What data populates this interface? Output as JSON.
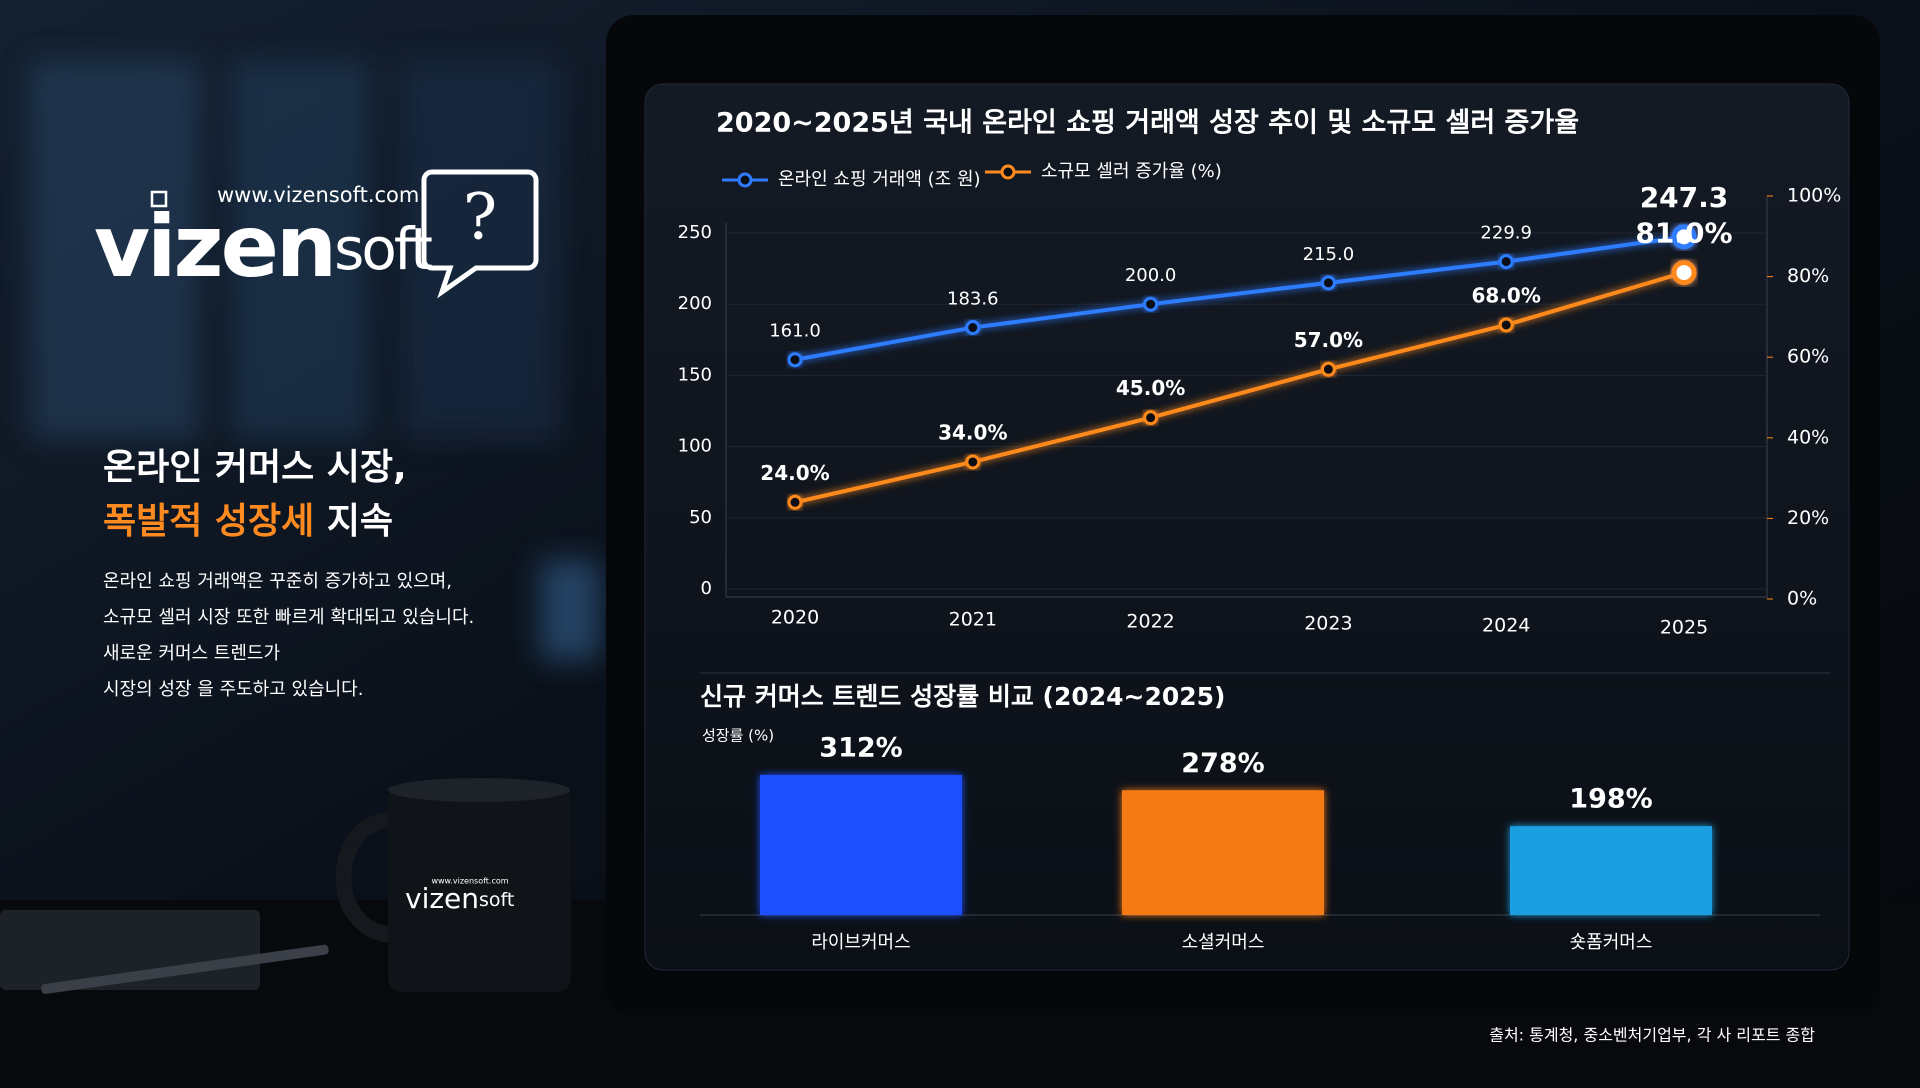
{
  "brand": {
    "url": "www.vizensoft.com",
    "name_main": "vizen",
    "name_sub": "soft",
    "icon": "?"
  },
  "headline": {
    "line1": "온라인 커머스 시장,",
    "highlight": "폭발적 성장세",
    "rest": "지속"
  },
  "body": [
    "온라인 쇼핑 거래액은 꾸준히 증가하고 있으며,",
    "소규모 셀러 시장 또한 빠르게 확대되고 있습니다.",
    "새로운 커머스 트렌드가",
    "시장의 성장 을 주도하고 있습니다."
  ],
  "source": "출처: 통계청, 중소벤처기업부, 각 사 리포트 종합",
  "chart_data": [
    {
      "type": "line",
      "title": "2020~2025년 국내 온라인 쇼핑 거래액 성장 추이 및 소규모 셀러 증가율",
      "categories": [
        "2020",
        "2021",
        "2022",
        "2023",
        "2024",
        "2025"
      ],
      "series": [
        {
          "name": "온라인 쇼핑 거래액 (조 원)",
          "color": "#2f7bff",
          "values": [
            161.0,
            183.6,
            200.0,
            215.0,
            229.9,
            247.3
          ],
          "value_labels": [
            "161.0",
            "183.6",
            "200.0",
            "215.0",
            "229.9",
            "247.3"
          ]
        },
        {
          "name": "소규모 셀러 증가율 (%)",
          "color": "#ff8a1f",
          "axis": "y2",
          "values": [
            24,
            34,
            45,
            57,
            68,
            81
          ],
          "value_labels": [
            "24.0%",
            "34.0%",
            "45.0%",
            "57.0%",
            "68.0%",
            "81.0%"
          ]
        }
      ],
      "ylim": [
        0,
        250
      ],
      "yticks": [
        0,
        50,
        100,
        150,
        200,
        250
      ],
      "y2lim": [
        0,
        100
      ],
      "y2ticks": [
        {
          "value": 0,
          "label": "0%"
        },
        {
          "value": 20,
          "label": "20%"
        },
        {
          "value": 40,
          "label": "40%"
        },
        {
          "value": 60,
          "label": "60%"
        },
        {
          "value": 80,
          "label": "80%"
        },
        {
          "value": 100,
          "label": "100%"
        }
      ],
      "grid": true,
      "legend": "top-left"
    },
    {
      "type": "bar",
      "title": "신규 커머스 트렌드 성장률 비교 (2024~2025)",
      "y_label": "성장률 (%)",
      "categories": [
        "라이브커머스",
        "소셜커머스",
        "숏폼커머스"
      ],
      "values": [
        312,
        278,
        198
      ],
      "value_labels": [
        "312%",
        "278%",
        "198%"
      ],
      "colors": [
        "#1a4fff",
        "#f47a16",
        "#1a9fe0"
      ]
    }
  ]
}
